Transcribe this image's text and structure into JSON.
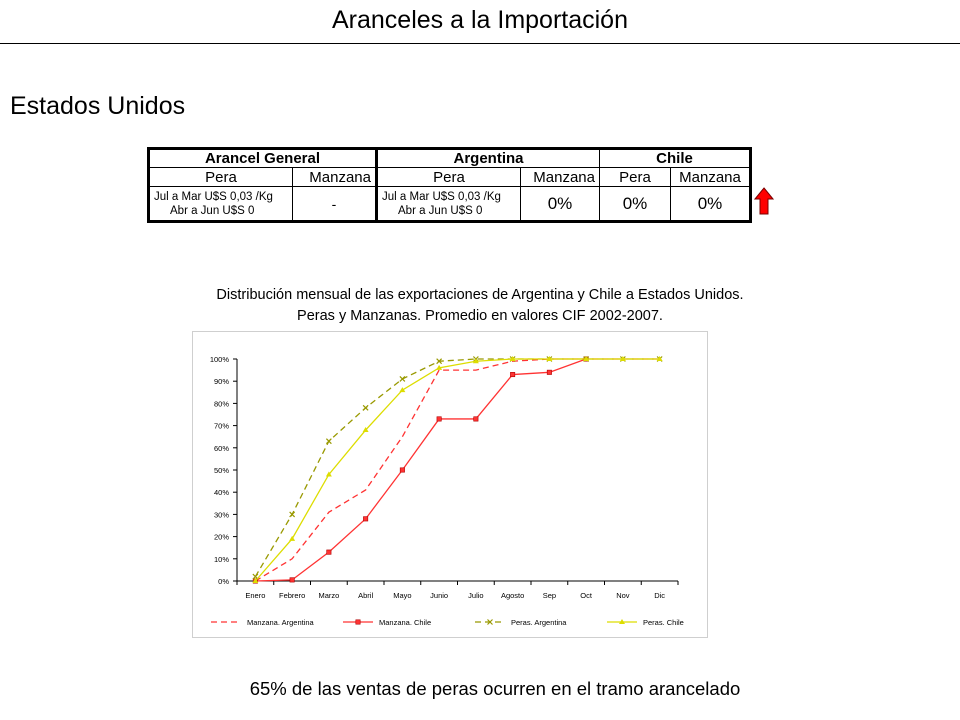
{
  "title": "Aranceles a la Importación",
  "country": "Estados Unidos",
  "tariff_table": {
    "groups": [
      "Arancel General",
      "Argentina",
      "Chile"
    ],
    "products": [
      "Pera",
      "Manzana",
      "Pera",
      "Manzana",
      "Pera",
      "Manzana"
    ],
    "general": {
      "pera_line1": "Jul a Mar U$S 0,03 /Kg",
      "pera_line2": "Abr a Jun U$S 0",
      "manzana": "-"
    },
    "argentina": {
      "pera_line1": "Jul a Mar U$S 0,03 /Kg",
      "pera_line2": "Abr a Jun U$S 0",
      "manzana": "0%"
    },
    "chile": {
      "pera": "0%",
      "manzana": "0%"
    }
  },
  "chart_caption": {
    "line1": "Distribución mensual de las exportaciones de Argentina y Chile a Estados Unidos.",
    "line2": "Peras y Manzanas.  Promedio  en valores CIF 2002-2007."
  },
  "chart_data": {
    "type": "line",
    "categories": [
      "Enero",
      "Febrero",
      "Marzo",
      "Abril",
      "Mayo",
      "Junio",
      "Julio",
      "Agosto",
      "Sep",
      "Oct",
      "Nov",
      "Dic"
    ],
    "ylim": [
      0,
      100
    ],
    "yticks": [
      "0%",
      "10%",
      "20%",
      "30%",
      "40%",
      "50%",
      "60%",
      "70%",
      "80%",
      "90%",
      "100%"
    ],
    "legend_position": "bottom",
    "series": [
      {
        "name": "Manzana. Argentina",
        "color": "#ff3333",
        "style": "dashed",
        "marker": "none",
        "values": [
          0,
          10,
          31,
          41,
          65,
          95,
          95,
          99,
          100,
          100,
          100,
          100
        ]
      },
      {
        "name": "Manzana. Chile",
        "color": "#ff3333",
        "style": "solid",
        "marker": "square",
        "values": [
          0,
          0.5,
          13,
          28,
          50,
          73,
          73,
          93,
          94,
          100,
          null,
          null
        ]
      },
      {
        "name": "Peras. Argentina",
        "color": "#999900",
        "style": "dashed",
        "marker": "x",
        "values": [
          2,
          30,
          63,
          78,
          91,
          99,
          100,
          100,
          100,
          100,
          100,
          100
        ]
      },
      {
        "name": "Peras. Chile",
        "color": "#dddd00",
        "style": "solid",
        "marker": "triangle",
        "values": [
          0,
          19,
          48,
          68,
          86,
          96,
          99,
          100,
          100,
          100,
          100,
          100
        ]
      }
    ]
  },
  "footer": "65% de las ventas de peras ocurren en el tramo arancelado"
}
